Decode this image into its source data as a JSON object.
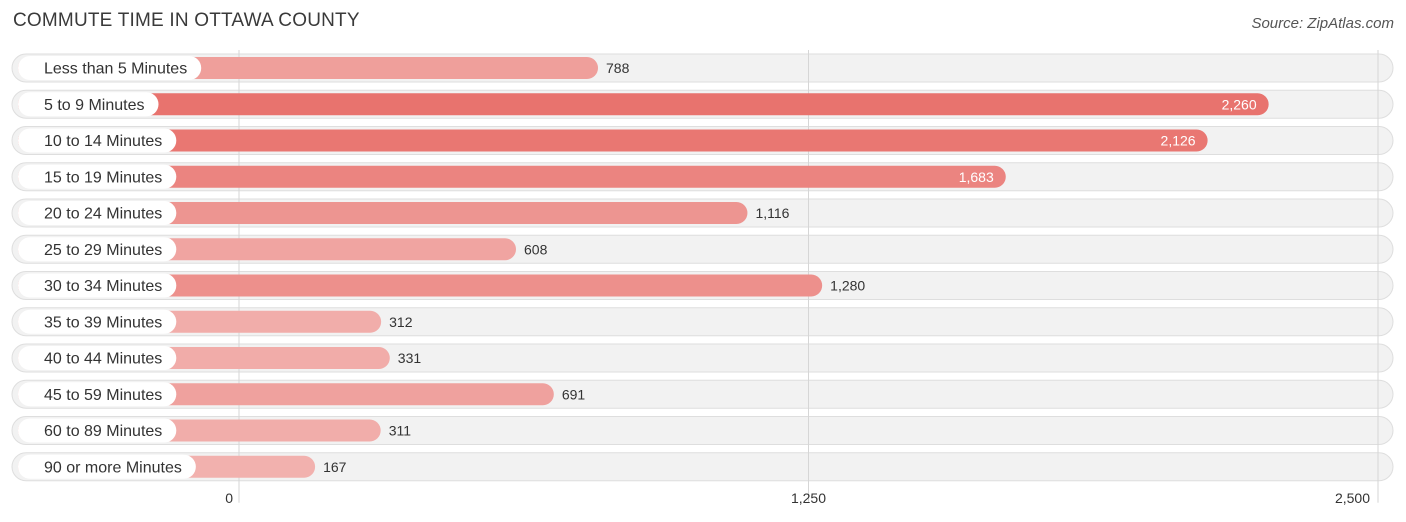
{
  "header": {
    "title": "COMMUTE TIME IN OTTAWA COUNTY",
    "source": "Source: ZipAtlas.com"
  },
  "chart_data": {
    "type": "bar",
    "orientation": "horizontal",
    "title": "COMMUTE TIME IN OTTAWA COUNTY",
    "xlabel": "",
    "ylabel": "",
    "categories": [
      "Less than 5 Minutes",
      "5 to 9 Minutes",
      "10 to 14 Minutes",
      "15 to 19 Minutes",
      "20 to 24 Minutes",
      "25 to 29 Minutes",
      "30 to 34 Minutes",
      "35 to 39 Minutes",
      "40 to 44 Minutes",
      "45 to 59 Minutes",
      "60 to 89 Minutes",
      "90 or more Minutes"
    ],
    "values": [
      788,
      2260,
      2126,
      1683,
      1116,
      608,
      1280,
      312,
      331,
      691,
      311,
      167
    ],
    "value_labels": [
      "788",
      "2,260",
      "2,126",
      "1,683",
      "1,116",
      "608",
      "1,280",
      "312",
      "331",
      "691",
      "311",
      "167"
    ],
    "xlim": [
      0,
      2500
    ],
    "ticks": [
      0,
      1250,
      2500
    ],
    "tick_labels": [
      "0",
      "1,250",
      "2,500"
    ],
    "grid": true,
    "colors": {
      "bar_max": "#e8736e",
      "bar_min": "#f2b1ae",
      "row_background": "#f2f2f2"
    }
  }
}
